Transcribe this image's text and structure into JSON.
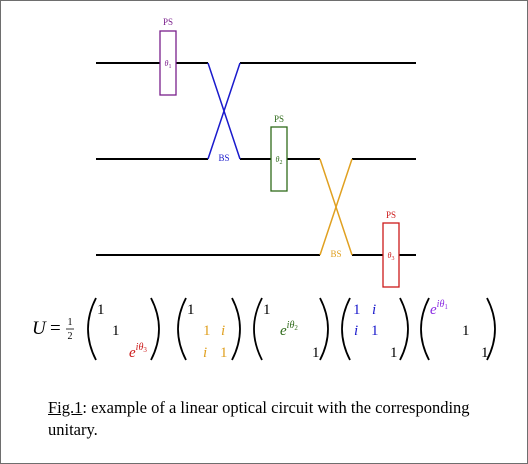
{
  "colors": {
    "ps1": "#7a1f8c",
    "ps2": "#2f6b1a",
    "ps3": "#cc1a1a",
    "bs1": "#1a1acc",
    "bs2": "#e0a020",
    "phase3_matrix": "#cc1a1a",
    "phase1_matrix": "#8a2be2"
  },
  "circuit": {
    "phase_shifters": [
      {
        "label": "PS",
        "angle": "θ",
        "index": "1",
        "color": "#7a1f8c"
      },
      {
        "label": "PS",
        "angle": "θ",
        "index": "2",
        "color": "#2f6b1a"
      },
      {
        "label": "PS",
        "angle": "θ",
        "index": "3",
        "color": "#cc1a1a"
      }
    ],
    "beam_splitters": [
      {
        "label": "BS",
        "color": "#1a1acc"
      },
      {
        "label": "BS",
        "color": "#e0a020"
      }
    ]
  },
  "equation": {
    "lhs": "U",
    "equals": "=",
    "frac_num": "1",
    "frac_den": "2",
    "m1": {
      "a": "1",
      "b": "1",
      "c_base": "e",
      "c_exp_base": "iθ",
      "c_exp_sub": "3"
    },
    "m2": {
      "a": "1",
      "b": "1",
      "c": "i",
      "d": "i",
      "e": "1"
    },
    "m3": {
      "a": "1",
      "b_base": "e",
      "b_exp_base": "iθ",
      "b_exp_sub": "2",
      "c": "1"
    },
    "m4": {
      "a": "1",
      "b": "i",
      "c": "i",
      "d": "1",
      "e": "1"
    },
    "m5": {
      "a_base": "e",
      "a_exp_base": "iθ",
      "a_exp_sub": "1",
      "b": "1",
      "c": "1"
    }
  },
  "caption": {
    "figref": "Fig.1",
    "text": ": example of a linear optical circuit with the corresponding unitary."
  }
}
